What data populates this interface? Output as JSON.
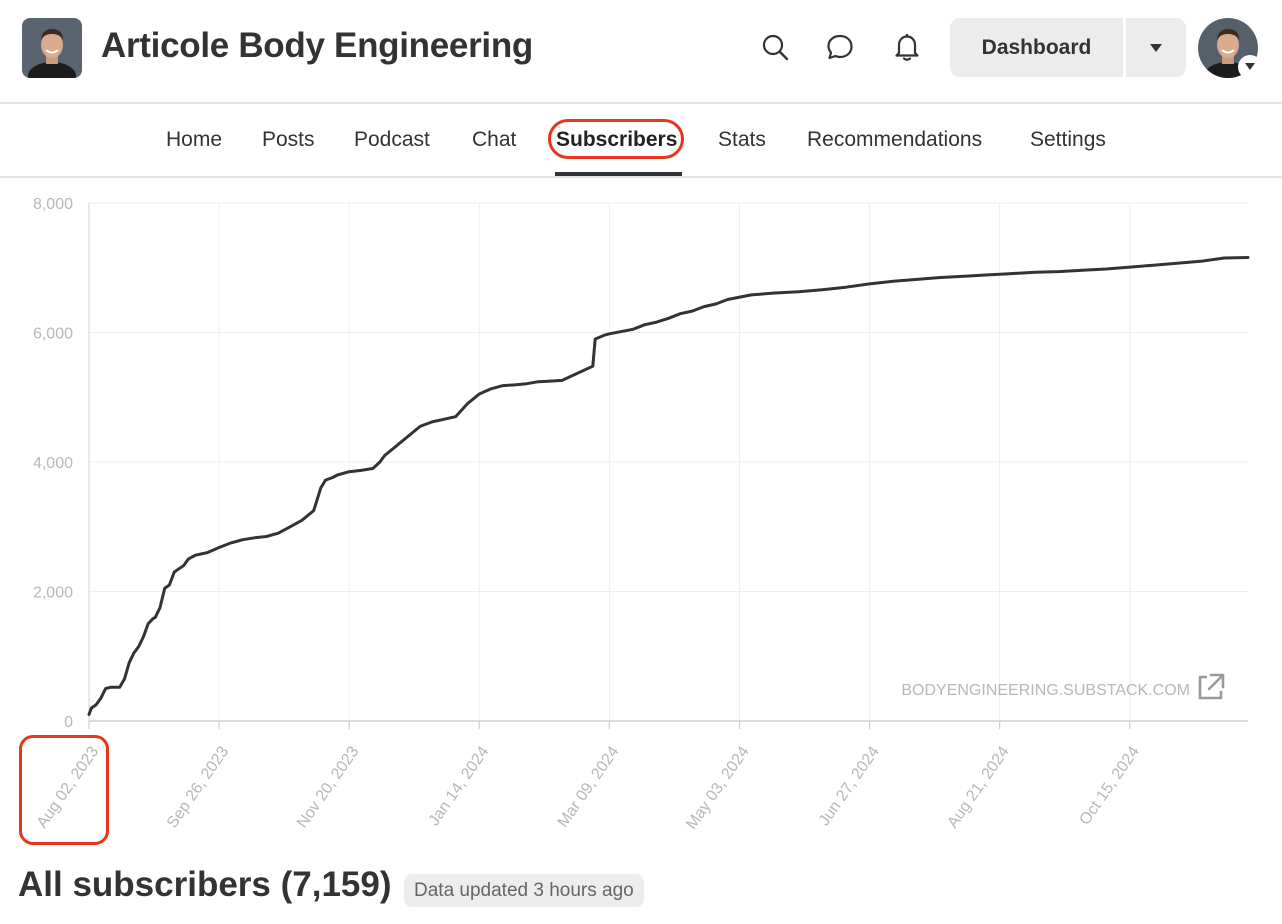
{
  "header": {
    "publication_name": "Articole Body Engineering",
    "dashboard_label": "Dashboard"
  },
  "nav": {
    "items": [
      "Home",
      "Posts",
      "Podcast",
      "Chat",
      "Subscribers",
      "Stats",
      "Recommendations",
      "Settings"
    ],
    "active": "Subscribers"
  },
  "chart_data": {
    "type": "line",
    "title": "",
    "xlabel": "",
    "ylabel": "",
    "ylim": [
      0,
      8000
    ],
    "y_ticks": [
      0,
      2000,
      4000,
      6000,
      8000
    ],
    "y_tick_labels": [
      "0",
      "2,000",
      "4,000",
      "6,000",
      "8,000"
    ],
    "x_tick_labels": [
      "Aug 02, 2023",
      "Sep 26, 2023",
      "Nov 20, 2023",
      "Jan 14, 2024",
      "Mar 09, 2024",
      "May 03, 2024",
      "Jun 27, 2024",
      "Aug 21, 2024",
      "Oct 15, 2024"
    ],
    "x_range_days": [
      0,
      490
    ],
    "grid": true,
    "watermark": "BODYENGINEERING.SUBSTACK.COM",
    "series": [
      {
        "name": "All subscribers",
        "x_days": [
          0,
          1,
          3,
          5,
          7,
          9,
          13,
          15,
          17,
          19,
          21,
          23,
          25,
          27,
          28,
          30,
          32,
          34,
          36,
          38,
          40,
          42,
          45,
          50,
          55,
          60,
          63,
          65,
          70,
          75,
          80,
          85,
          90,
          95,
          98,
          100,
          103,
          105,
          110,
          115,
          120,
          123,
          125,
          130,
          135,
          140,
          145,
          150,
          155,
          160,
          165,
          170,
          175,
          180,
          185,
          190,
          195,
          200,
          213,
          214,
          218,
          220,
          230,
          235,
          240,
          245,
          250,
          255,
          260,
          265,
          270,
          280,
          290,
          300,
          310,
          320,
          330,
          340,
          350,
          360,
          370,
          380,
          390,
          400,
          410,
          420,
          430,
          440,
          450,
          460,
          470,
          480,
          490
        ],
        "values": [
          100,
          200,
          250,
          350,
          500,
          520,
          520,
          650,
          900,
          1050,
          1150,
          1300,
          1500,
          1580,
          1600,
          1750,
          2050,
          2100,
          2300,
          2350,
          2400,
          2500,
          2560,
          2600,
          2680,
          2750,
          2780,
          2800,
          2830,
          2850,
          2900,
          3000,
          3100,
          3250,
          3600,
          3720,
          3760,
          3800,
          3850,
          3870,
          3900,
          4000,
          4100,
          4250,
          4400,
          4550,
          4620,
          4660,
          4700,
          4900,
          5050,
          5130,
          5180,
          5190,
          5210,
          5240,
          5250,
          5260,
          5480,
          5900,
          5960,
          5980,
          6050,
          6120,
          6160,
          6220,
          6290,
          6330,
          6400,
          6440,
          6510,
          6580,
          6610,
          6630,
          6660,
          6700,
          6750,
          6790,
          6820,
          6850,
          6870,
          6890,
          6910,
          6930,
          6940,
          6960,
          6980,
          7010,
          7040,
          7070,
          7100,
          7150,
          7159
        ]
      }
    ]
  },
  "summary": {
    "title": "All subscribers (7,159)",
    "updated": "Data updated 3 hours ago"
  },
  "colors": {
    "line": "#333333",
    "grid": "#eeeeee",
    "axis_text": "#b8b8b8",
    "highlight": "#e8361e"
  }
}
